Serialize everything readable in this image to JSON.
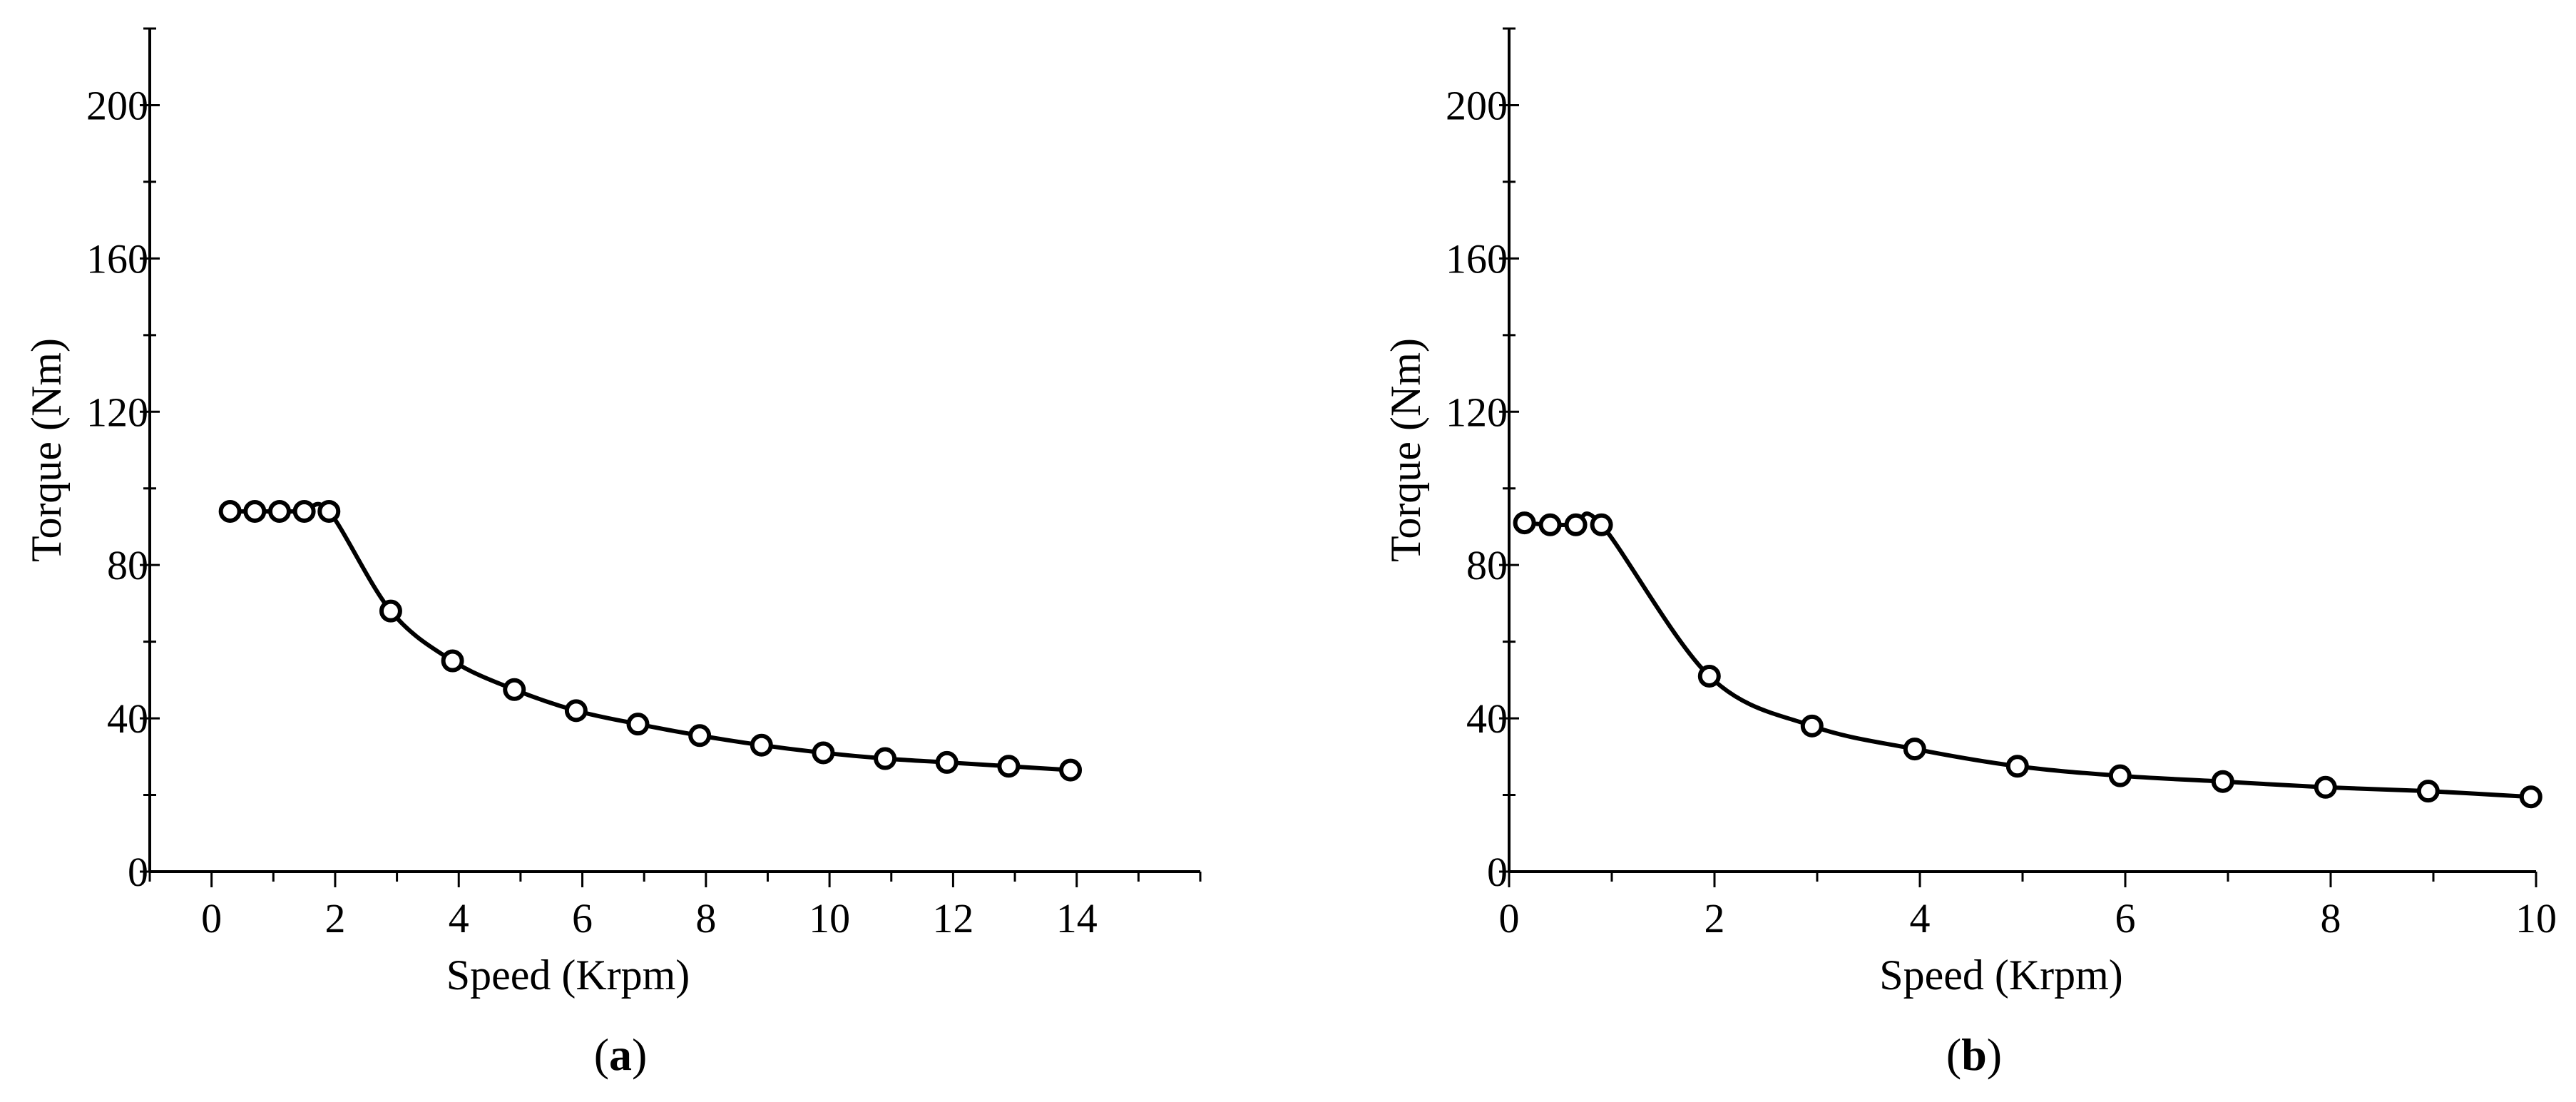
{
  "chart_data": [
    {
      "type": "line",
      "panel_label": {
        "open": "(",
        "letter": "a",
        "close": ")"
      },
      "xlabel": "Speed (Krpm)",
      "ylabel": "Torque (Nm)",
      "xlim": [
        -1,
        16
      ],
      "ylim": [
        0,
        220
      ],
      "xticks": [
        0,
        2,
        4,
        6,
        8,
        10,
        12,
        14
      ],
      "yticks": [
        0,
        40,
        80,
        120,
        160,
        200
      ],
      "grid": false,
      "series": [
        {
          "name": "torque",
          "marker": "circle",
          "points": [
            [
              0.3,
              94
            ],
            [
              0.7,
              94
            ],
            [
              1.1,
              94
            ],
            [
              1.5,
              94
            ],
            [
              1.9,
              94
            ],
            [
              2.9,
              68
            ],
            [
              3.9,
              55
            ],
            [
              4.9,
              47.5
            ],
            [
              5.9,
              42
            ],
            [
              6.9,
              38.5
            ],
            [
              7.9,
              35.5
            ],
            [
              8.9,
              33
            ],
            [
              9.9,
              31
            ],
            [
              10.9,
              29.5
            ],
            [
              11.9,
              28.5
            ],
            [
              12.9,
              27.5
            ],
            [
              13.9,
              26.5
            ]
          ]
        }
      ]
    },
    {
      "type": "line",
      "panel_label": {
        "open": "(",
        "letter": "b",
        "close": ")"
      },
      "xlabel": "Speed (Krpm)",
      "ylabel": "Torque (Nm)",
      "xlim": [
        0,
        10
      ],
      "ylim": [
        0,
        220
      ],
      "xticks": [
        0,
        2,
        4,
        6,
        8,
        10
      ],
      "yticks": [
        0,
        40,
        80,
        120,
        160,
        200
      ],
      "grid": false,
      "series": [
        {
          "name": "torque",
          "marker": "circle",
          "points": [
            [
              0.15,
              91
            ],
            [
              0.4,
              90.5
            ],
            [
              0.65,
              90.5
            ],
            [
              0.9,
              90.5
            ],
            [
              1.95,
              51
            ],
            [
              2.95,
              38
            ],
            [
              3.95,
              32
            ],
            [
              4.95,
              27.5
            ],
            [
              5.95,
              25
            ],
            [
              6.95,
              23.5
            ],
            [
              7.95,
              22
            ],
            [
              8.95,
              21
            ],
            [
              9.95,
              19.5
            ]
          ]
        }
      ]
    }
  ]
}
